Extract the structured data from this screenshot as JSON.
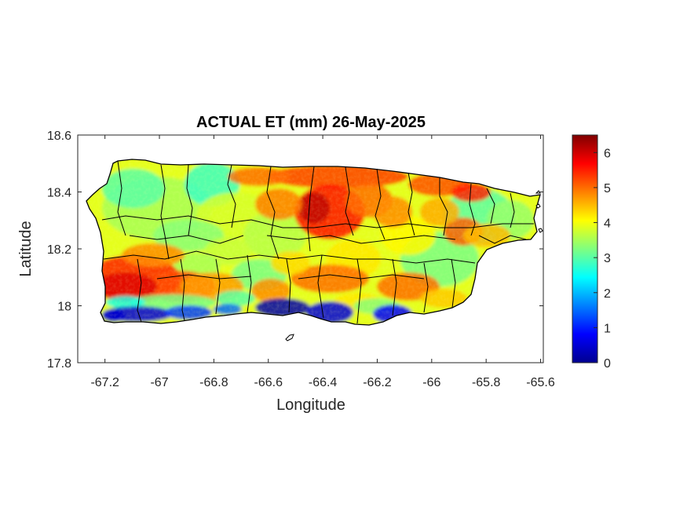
{
  "chart_data": {
    "type": "heatmap",
    "title": "ACTUAL ET (mm) 26-May-2025",
    "xlabel": "Longitude",
    "ylabel": "Latitude",
    "xlim": [
      -67.3,
      -65.59
    ],
    "ylim": [
      17.8,
      18.6
    ],
    "xticks": [
      -67.2,
      -67,
      -66.8,
      -66.6,
      -66.4,
      -66.2,
      -66,
      -65.8,
      -65.6
    ],
    "xtick_labels": [
      "-67.2",
      "-67",
      "-66.8",
      "-66.6",
      "-66.4",
      "-66.2",
      "-66",
      "-65.8",
      "-65.6"
    ],
    "yticks": [
      17.8,
      18,
      18.2,
      18.4,
      18.6
    ],
    "ytick_labels": [
      "17.8",
      "18",
      "18.2",
      "18.4",
      "18.6"
    ],
    "colorbar": {
      "colormap": "jet",
      "range": [
        0,
        6.5
      ],
      "ticks": [
        0,
        1,
        2,
        3,
        4,
        5,
        6
      ],
      "tick_labels": [
        "0",
        "1",
        "2",
        "3",
        "4",
        "5",
        "6"
      ],
      "location": "right"
    },
    "grid": false
  }
}
